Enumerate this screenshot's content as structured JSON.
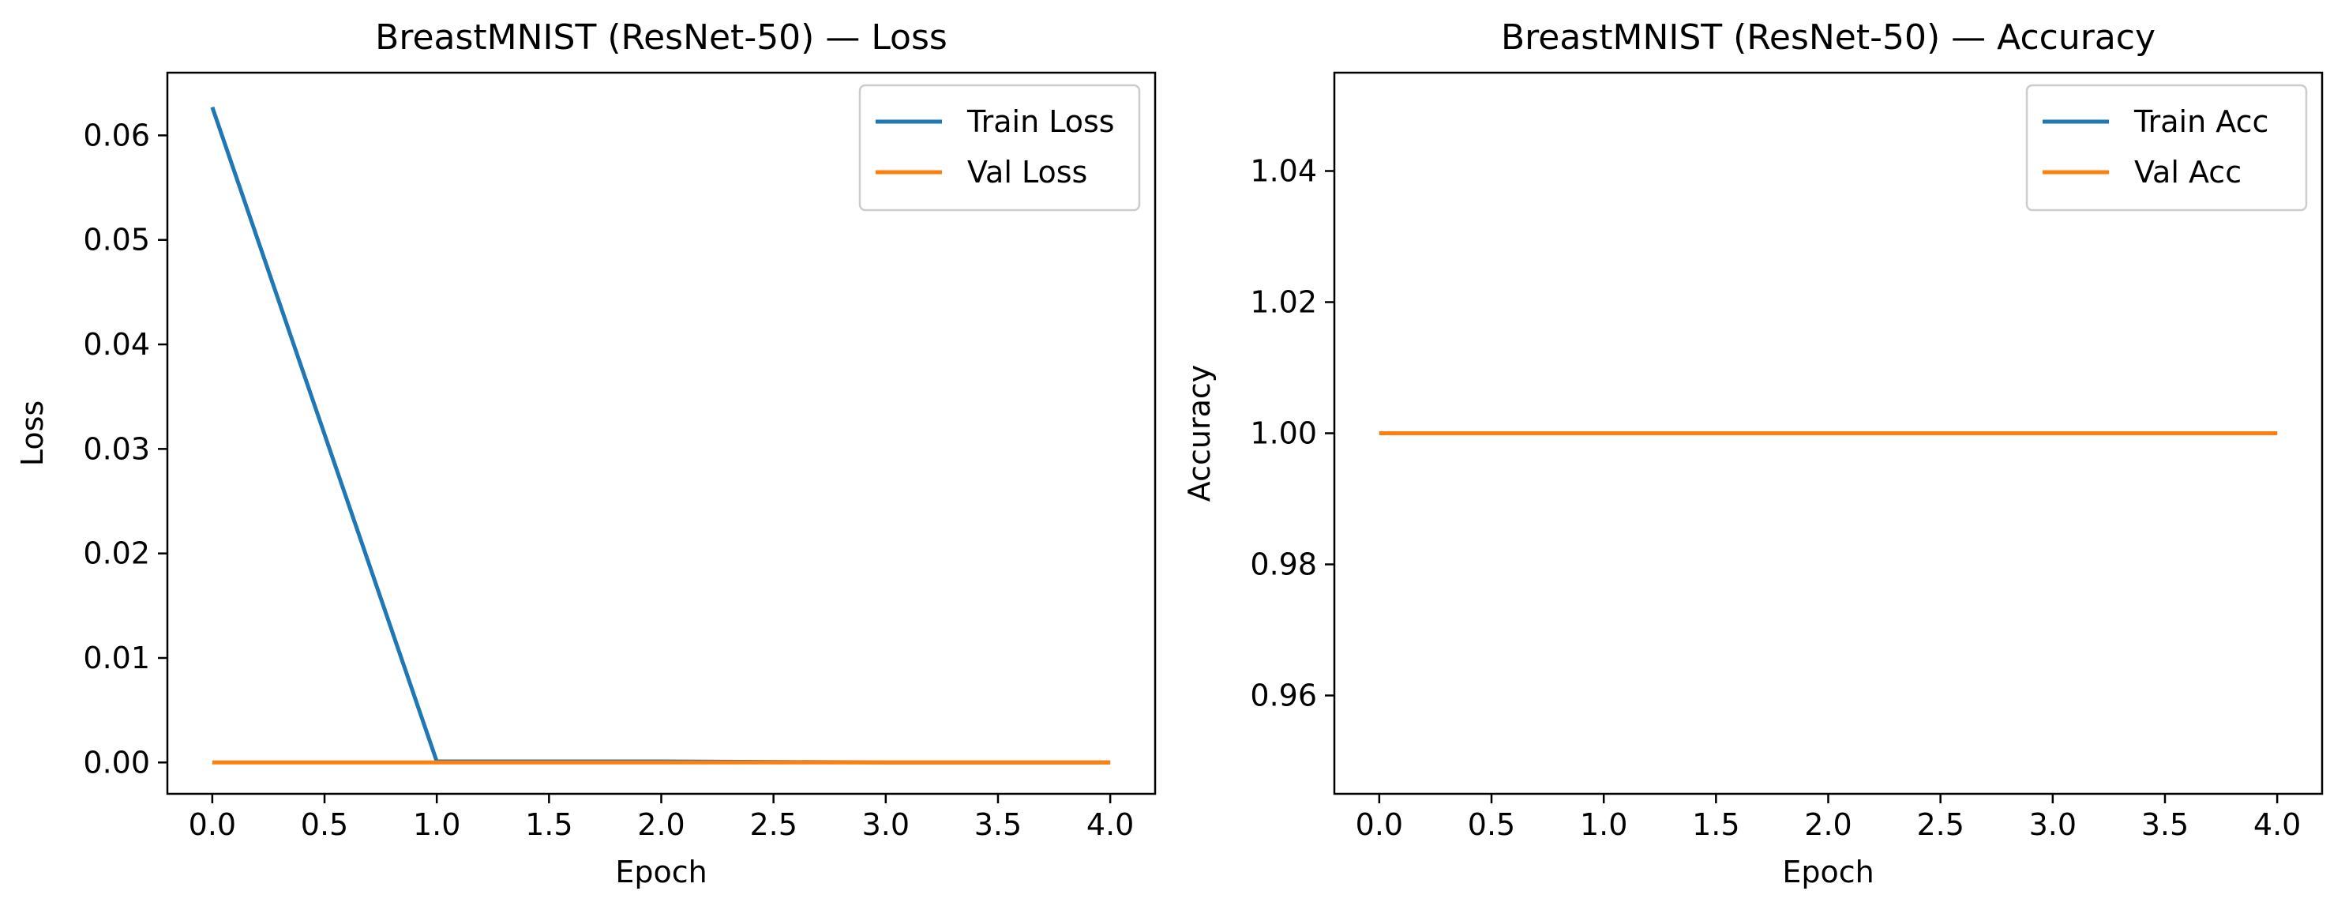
{
  "chart_data": [
    {
      "type": "line",
      "title": "BreastMNIST (ResNet-50) — Loss",
      "xlabel": "Epoch",
      "ylabel": "Loss",
      "xlim": [
        -0.2,
        4.2
      ],
      "ylim": [
        -0.003,
        0.066
      ],
      "xticks": [
        0.0,
        0.5,
        1.0,
        1.5,
        2.0,
        2.5,
        3.0,
        3.5,
        4.0
      ],
      "xtick_labels": [
        "0.0",
        "0.5",
        "1.0",
        "1.5",
        "2.0",
        "2.5",
        "3.0",
        "3.5",
        "4.0"
      ],
      "yticks": [
        0.0,
        0.01,
        0.02,
        0.03,
        0.04,
        0.05,
        0.06
      ],
      "ytick_labels": [
        "0.00",
        "0.01",
        "0.02",
        "0.03",
        "0.04",
        "0.05",
        "0.06"
      ],
      "grid": false,
      "legend_position": "upper right",
      "x": [
        0,
        1,
        2,
        3,
        4
      ],
      "series": [
        {
          "name": "Train Loss",
          "color": "#1f77b4",
          "values": [
            0.0627,
            0.0001,
            0.0001,
            0.0,
            0.0
          ]
        },
        {
          "name": "Val Loss",
          "color": "#ff7f0e",
          "values": [
            0.0,
            0.0,
            0.0,
            0.0,
            0.0
          ]
        }
      ]
    },
    {
      "type": "line",
      "title": "BreastMNIST (ResNet-50) — Accuracy",
      "xlabel": "Epoch",
      "ylabel": "Accuracy",
      "xlim": [
        -0.2,
        4.2
      ],
      "ylim": [
        0.945,
        1.055
      ],
      "xticks": [
        0.0,
        0.5,
        1.0,
        1.5,
        2.0,
        2.5,
        3.0,
        3.5,
        4.0
      ],
      "xtick_labels": [
        "0.0",
        "0.5",
        "1.0",
        "1.5",
        "2.0",
        "2.5",
        "3.0",
        "3.5",
        "4.0"
      ],
      "yticks": [
        0.96,
        0.98,
        1.0,
        1.02,
        1.04
      ],
      "ytick_labels": [
        "0.96",
        "0.98",
        "1.00",
        "1.02",
        "1.04"
      ],
      "grid": false,
      "legend_position": "upper right",
      "x": [
        0,
        1,
        2,
        3,
        4
      ],
      "series": [
        {
          "name": "Train Acc",
          "color": "#1f77b4",
          "values": [
            1.0,
            1.0,
            1.0,
            1.0,
            1.0
          ]
        },
        {
          "name": "Val Acc",
          "color": "#ff7f0e",
          "values": [
            1.0,
            1.0,
            1.0,
            1.0,
            1.0
          ]
        }
      ]
    }
  ]
}
